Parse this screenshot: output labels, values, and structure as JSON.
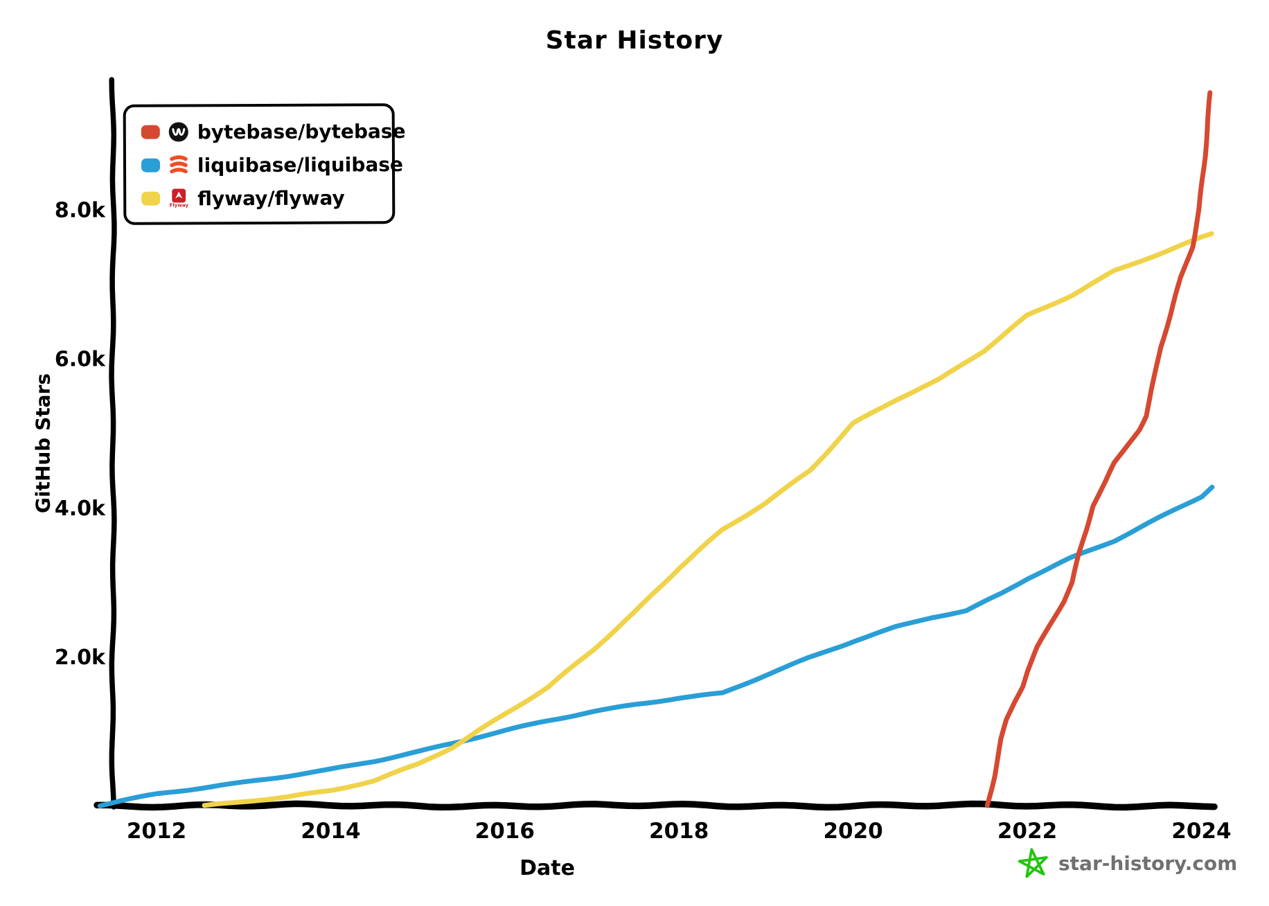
{
  "title": "Star History",
  "legend": {
    "items": [
      {
        "label": "bytebase/bytebase",
        "color": "#d64931",
        "logo": "bytebase-logo",
        "logo_text": ""
      },
      {
        "label": "liquibase/liquibase",
        "color": "#2a9ed6",
        "logo": "liquibase-logo",
        "logo_text": ""
      },
      {
        "label": "flyway/flyway",
        "color": "#f0d34a",
        "logo": "flyway-logo",
        "logo_text": "Flyway"
      }
    ]
  },
  "watermark": {
    "text": "star-history.com",
    "star_color": "#22c50e",
    "text_color": "#707070"
  },
  "chart_data": {
    "type": "line",
    "title": "Star History",
    "xlabel": "Date",
    "ylabel": "GitHub Stars",
    "x_range": [
      2011.3,
      2024.2
    ],
    "y_range": [
      0,
      9700
    ],
    "grid": false,
    "legend_position": "top-left",
    "x_ticks": [
      {
        "value": 2012,
        "label": "2012"
      },
      {
        "value": 2014,
        "label": "2014"
      },
      {
        "value": 2016,
        "label": "2016"
      },
      {
        "value": 2018,
        "label": "2018"
      },
      {
        "value": 2020,
        "label": "2020"
      },
      {
        "value": 2022,
        "label": "2022"
      },
      {
        "value": 2024,
        "label": "2024"
      }
    ],
    "y_ticks": [
      {
        "value": 2000,
        "label": "2.0k"
      },
      {
        "value": 4000,
        "label": "4.0k"
      },
      {
        "value": 6000,
        "label": "6.0k"
      },
      {
        "value": 8000,
        "label": "8.0k"
      }
    ],
    "series": [
      {
        "name": "bytebase/bytebase",
        "color": "#d64931",
        "points": [
          [
            2021.54,
            0
          ],
          [
            2021.62,
            400
          ],
          [
            2021.7,
            900
          ],
          [
            2021.76,
            1160
          ],
          [
            2021.85,
            1400
          ],
          [
            2021.94,
            1600
          ],
          [
            2022.0,
            1800
          ],
          [
            2022.12,
            2130
          ],
          [
            2022.25,
            2400
          ],
          [
            2022.42,
            2740
          ],
          [
            2022.52,
            3000
          ],
          [
            2022.6,
            3370
          ],
          [
            2022.68,
            3700
          ],
          [
            2022.75,
            4020
          ],
          [
            2022.9,
            4350
          ],
          [
            2023.0,
            4600
          ],
          [
            2023.16,
            4860
          ],
          [
            2023.28,
            5050
          ],
          [
            2023.36,
            5230
          ],
          [
            2023.45,
            5700
          ],
          [
            2023.53,
            6160
          ],
          [
            2023.65,
            6600
          ],
          [
            2023.77,
            7090
          ],
          [
            2023.9,
            7500
          ],
          [
            2023.98,
            8020
          ],
          [
            2024.03,
            8600
          ],
          [
            2024.07,
            9200
          ],
          [
            2024.1,
            9570
          ]
        ]
      },
      {
        "name": "liquibase/liquibase",
        "color": "#2a9ed6",
        "points": [
          [
            2011.35,
            0
          ],
          [
            2011.6,
            60
          ],
          [
            2012.0,
            150
          ],
          [
            2012.5,
            230
          ],
          [
            2013.0,
            310
          ],
          [
            2013.5,
            400
          ],
          [
            2014.0,
            490
          ],
          [
            2014.5,
            600
          ],
          [
            2015.0,
            720
          ],
          [
            2015.5,
            860
          ],
          [
            2016.0,
            1000
          ],
          [
            2016.5,
            1140
          ],
          [
            2017.0,
            1260
          ],
          [
            2017.5,
            1360
          ],
          [
            2018.0,
            1450
          ],
          [
            2018.5,
            1510
          ],
          [
            2019.0,
            1750
          ],
          [
            2019.5,
            1980
          ],
          [
            2020.0,
            2200
          ],
          [
            2020.5,
            2400
          ],
          [
            2020.9,
            2530
          ],
          [
            2021.3,
            2620
          ],
          [
            2021.7,
            2850
          ],
          [
            2022.0,
            3050
          ],
          [
            2022.5,
            3320
          ],
          [
            2023.0,
            3550
          ],
          [
            2023.5,
            3850
          ],
          [
            2024.0,
            4150
          ],
          [
            2024.12,
            4280
          ]
        ]
      },
      {
        "name": "flyway/flyway",
        "color": "#f0d34a",
        "points": [
          [
            2012.55,
            0
          ],
          [
            2013.0,
            60
          ],
          [
            2013.5,
            120
          ],
          [
            2014.0,
            200
          ],
          [
            2014.5,
            330
          ],
          [
            2015.0,
            550
          ],
          [
            2015.4,
            780
          ],
          [
            2016.0,
            1230
          ],
          [
            2016.5,
            1600
          ],
          [
            2017.0,
            2080
          ],
          [
            2017.5,
            2600
          ],
          [
            2018.0,
            3180
          ],
          [
            2018.5,
            3700
          ],
          [
            2019.0,
            4070
          ],
          [
            2019.5,
            4500
          ],
          [
            2020.0,
            5130
          ],
          [
            2020.5,
            5450
          ],
          [
            2021.0,
            5720
          ],
          [
            2021.5,
            6100
          ],
          [
            2022.0,
            6580
          ],
          [
            2022.5,
            6850
          ],
          [
            2023.0,
            7180
          ],
          [
            2023.5,
            7400
          ],
          [
            2024.0,
            7620
          ],
          [
            2024.12,
            7670
          ]
        ]
      }
    ]
  }
}
